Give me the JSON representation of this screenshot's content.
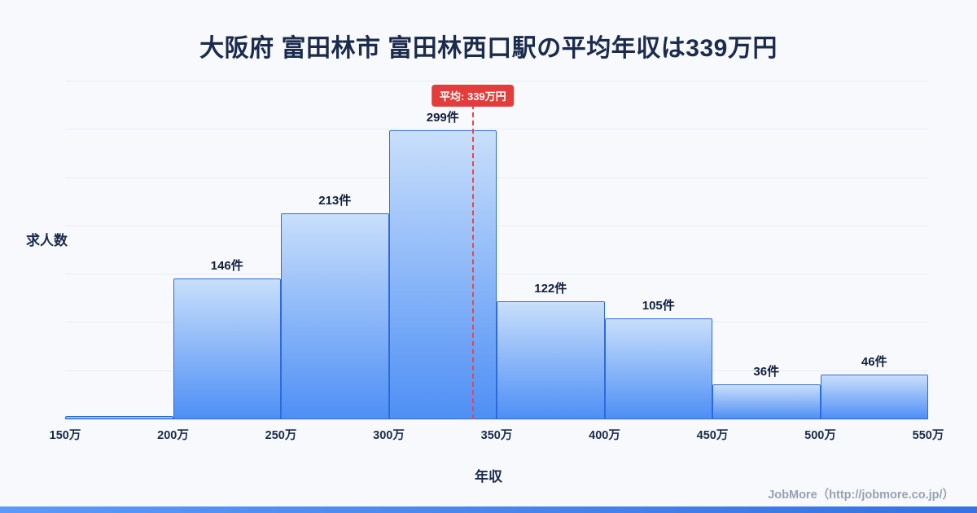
{
  "theme": {
    "bg": "#f7f9fd",
    "ink": "#1b2b4b",
    "bar-top": "#c9dffb",
    "bar-bottom": "#4e8ff5",
    "bar-border": "#2e6bd9",
    "grid": "#e7edf6",
    "avg": "#ef4444",
    "avg-badge-bg": "#e23d3a",
    "footer-ink": "#98a1b3",
    "accent": "#3672e0",
    "accent-light": "#5b9bf6"
  },
  "header": {
    "title": "大阪府 富田林市 富田林西口駅の平均年収は339万円"
  },
  "footer": {
    "credit": "JobMore（http://jobmore.co.jp/）"
  },
  "chart_data": {
    "type": "bar",
    "title": "大阪府 富田林市 富田林西口駅の平均年収は339万円",
    "xlabel": "年収",
    "ylabel": "求人数",
    "x_tick_labels": [
      "150万",
      "200万",
      "250万",
      "300万",
      "350万",
      "400万",
      "450万",
      "500万",
      "550万"
    ],
    "xlim_value": [
      150,
      550
    ],
    "ylim": [
      0,
      350
    ],
    "grid_step": 50,
    "grid_on": true,
    "legend_position": "none",
    "bins": [
      {
        "range": "150万-200万",
        "count": 3,
        "label": ""
      },
      {
        "range": "200万-250万",
        "count": 146,
        "label": "146件"
      },
      {
        "range": "250万-300万",
        "count": 213,
        "label": "213件"
      },
      {
        "range": "300万-350万",
        "count": 299,
        "label": "299件"
      },
      {
        "range": "350万-400万",
        "count": 122,
        "label": "122件"
      },
      {
        "range": "400万-450万",
        "count": 105,
        "label": "105件"
      },
      {
        "range": "450万-500万",
        "count": 36,
        "label": "36件"
      },
      {
        "range": "500万-550万",
        "count": 46,
        "label": "46件"
      }
    ],
    "average": {
      "value": 339,
      "label": "平均: 339万円"
    }
  }
}
